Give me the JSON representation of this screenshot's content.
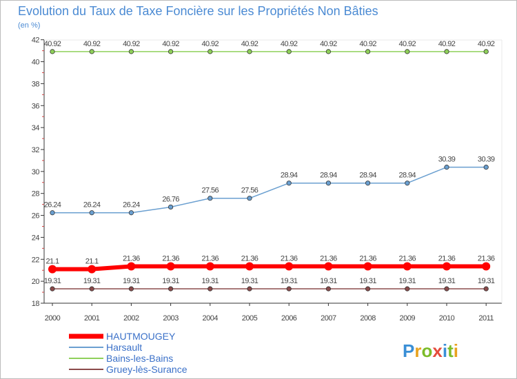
{
  "title": "Evolution du Taux de Taxe Foncière sur les Propriétés Non Bâties",
  "subtitle": "(en %)",
  "logo": {
    "text": "Proxiti",
    "letters": [
      "P",
      "r",
      "o",
      "x",
      "i",
      "t",
      "i"
    ],
    "colors": [
      "#3a8fd6",
      "#e8a21e",
      "#7cbc2a",
      "#e54b3c",
      "#3a8fd6",
      "#7cbc2a",
      "#e8a21e"
    ]
  },
  "chart_data": {
    "type": "line",
    "title": "Evolution du Taux de Taxe Foncière sur les Propriétés Non Bâties",
    "ylabel": "(en %)",
    "xlabel": "",
    "categories": [
      "2000",
      "2001",
      "2002",
      "2003",
      "2004",
      "2005",
      "2006",
      "2007",
      "2008",
      "2009",
      "2010",
      "2011"
    ],
    "ylim": [
      18,
      42
    ],
    "yticks": [
      18,
      20,
      22,
      24,
      26,
      28,
      30,
      32,
      34,
      36,
      38,
      40,
      42
    ],
    "grid": false,
    "legend_position": "bottom-left",
    "series": [
      {
        "name": "HAUTMOUGEY",
        "color": "#ff0000",
        "values": [
          21.1,
          21.1,
          21.36,
          21.36,
          21.36,
          21.36,
          21.36,
          21.36,
          21.36,
          21.36,
          21.36,
          21.36
        ],
        "labels": [
          "21.1",
          "21.1",
          "21.36",
          "21.36",
          "21.36",
          "21.36",
          "21.36",
          "21.36",
          "21.36",
          "21.36",
          "21.36",
          "21.36"
        ]
      },
      {
        "name": "Harsault",
        "color": "#6a9fd0",
        "values": [
          26.24,
          26.24,
          26.24,
          26.76,
          27.56,
          27.56,
          28.94,
          28.94,
          28.94,
          28.94,
          30.39,
          30.39
        ],
        "labels": [
          "26.24",
          "26.24",
          "26.24",
          "26.76",
          "27.56",
          "27.56",
          "28.94",
          "28.94",
          "28.94",
          "28.94",
          "30.39",
          "30.39"
        ]
      },
      {
        "name": "Bains-les-Bains",
        "color": "#8fd05a",
        "values": [
          40.92,
          40.92,
          40.92,
          40.92,
          40.92,
          40.92,
          40.92,
          40.92,
          40.92,
          40.92,
          40.92,
          40.92
        ],
        "labels": [
          "40.92",
          "40.92",
          "40.92",
          "40.92",
          "40.92",
          "40.92",
          "40.92",
          "40.92",
          "40.92",
          "40.92",
          "40.92",
          "40.92"
        ]
      },
      {
        "name": "Gruey-lès-Surance",
        "color": "#8a4a4a",
        "values": [
          19.31,
          19.31,
          19.31,
          19.31,
          19.31,
          19.31,
          19.31,
          19.31,
          19.31,
          19.31,
          19.31,
          19.31
        ],
        "labels": [
          "19.31",
          "19.31",
          "19.31",
          "19.31",
          "19.31",
          "19.31",
          "19.31",
          "19.31",
          "19.31",
          "19.31",
          "19.31",
          "19.31"
        ]
      }
    ]
  }
}
